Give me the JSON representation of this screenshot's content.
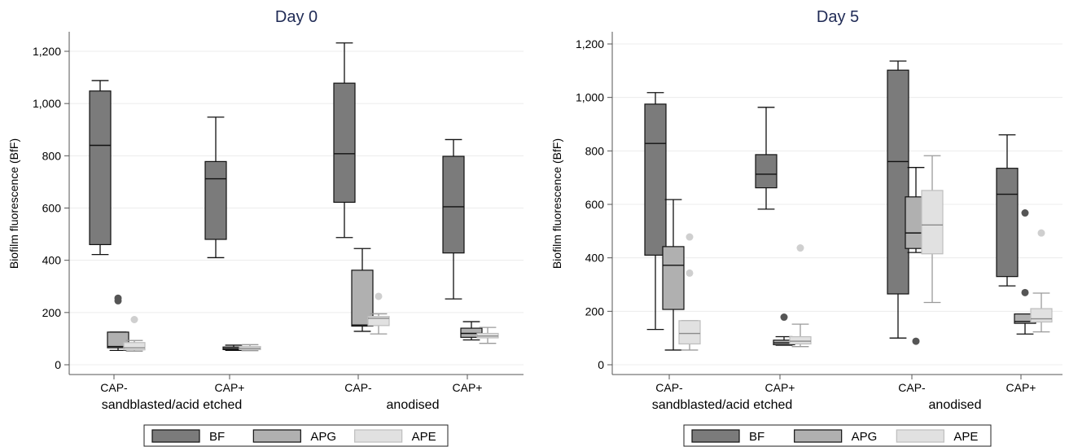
{
  "colors": {
    "BF": "#7b7b7b",
    "APG": "#b0b0b0",
    "APE": "#e1e1e1",
    "title": "#1f2a55",
    "grid": "#ececec",
    "axis": "#555555"
  },
  "chart_data": [
    {
      "type": "box",
      "title": "Day 0",
      "ylabel": "Biofilm fluorescence (BfF)",
      "ylim": [
        -30,
        1280
      ],
      "yticks": [
        0,
        200,
        400,
        600,
        800,
        1000,
        1200
      ],
      "ytick_labels": [
        "0",
        "200",
        "400",
        "600",
        "800",
        "1,000",
        "1,200"
      ],
      "grid": true,
      "legend_placement": "bottom",
      "categories": [
        "CAP-",
        "CAP+",
        "CAP-",
        "CAP+"
      ],
      "groups": [
        {
          "label": "sandblasted/acid etched",
          "categories": [
            0,
            1
          ]
        },
        {
          "label": "anodised",
          "categories": [
            2,
            3
          ]
        }
      ],
      "series": [
        {
          "name": "BF",
          "boxes": [
            {
              "min": 422,
              "q1": 460,
              "median": 840,
              "q3": 1048,
              "max": 1088,
              "outliers": []
            },
            {
              "min": 410,
              "q1": 480,
              "median": 712,
              "q3": 778,
              "max": 948,
              "outliers": []
            },
            {
              "min": 487,
              "q1": 622,
              "median": 808,
              "q3": 1078,
              "max": 1232,
              "outliers": []
            },
            {
              "min": 252,
              "q1": 428,
              "median": 605,
              "q3": 798,
              "max": 862,
              "outliers": []
            }
          ]
        },
        {
          "name": "APG",
          "boxes": [
            {
              "min": 55,
              "q1": 65,
              "median": 70,
              "q3": 125,
              "max": 125,
              "outliers": [
                245,
                255
              ]
            },
            {
              "min": 55,
              "q1": 58,
              "median": 62,
              "q3": 68,
              "max": 75,
              "outliers": []
            },
            {
              "min": 128,
              "q1": 148,
              "median": 152,
              "q3": 362,
              "max": 445,
              "outliers": []
            },
            {
              "min": 95,
              "q1": 105,
              "median": 120,
              "q3": 140,
              "max": 165,
              "outliers": []
            }
          ]
        },
        {
          "name": "APE",
          "boxes": [
            {
              "min": 52,
              "q1": 57,
              "median": 65,
              "q3": 85,
              "max": 93,
              "outliers": [
                173
              ]
            },
            {
              "min": 54,
              "q1": 58,
              "median": 63,
              "q3": 70,
              "max": 77,
              "outliers": []
            },
            {
              "min": 118,
              "q1": 150,
              "median": 178,
              "q3": 185,
              "max": 195,
              "outliers": [
                262
              ]
            },
            {
              "min": 82,
              "q1": 103,
              "median": 110,
              "q3": 120,
              "max": 143,
              "outliers": []
            }
          ]
        }
      ]
    },
    {
      "type": "box",
      "title": "Day 5",
      "ylabel": "Biofilm fluorescence (BfF)",
      "ylim": [
        -30,
        1250
      ],
      "yticks": [
        0,
        200,
        400,
        600,
        800,
        1000,
        1200
      ],
      "ytick_labels": [
        "0",
        "200",
        "400",
        "600",
        "800",
        "1,000",
        "1,200"
      ],
      "grid": true,
      "legend_placement": "bottom",
      "categories": [
        "CAP-",
        "CAP+",
        "CAP-",
        "CAP+"
      ],
      "groups": [
        {
          "label": "sandblasted/acid etched",
          "categories": [
            0,
            1
          ]
        },
        {
          "label": "anodised",
          "categories": [
            2,
            3
          ]
        }
      ],
      "series": [
        {
          "name": "BF",
          "boxes": [
            {
              "min": 132,
              "q1": 410,
              "median": 828,
              "q3": 975,
              "max": 1018,
              "outliers": []
            },
            {
              "min": 582,
              "q1": 662,
              "median": 713,
              "q3": 786,
              "max": 963,
              "outliers": []
            },
            {
              "min": 100,
              "q1": 265,
              "median": 760,
              "q3": 1102,
              "max": 1136,
              "outliers": []
            },
            {
              "min": 295,
              "q1": 330,
              "median": 638,
              "q3": 735,
              "max": 860,
              "outliers": []
            }
          ]
        },
        {
          "name": "APG",
          "boxes": [
            {
              "min": 55,
              "q1": 207,
              "median": 372,
              "q3": 442,
              "max": 618,
              "outliers": []
            },
            {
              "min": 73,
              "q1": 75,
              "median": 82,
              "q3": 92,
              "max": 105,
              "outliers": [
                178
              ]
            },
            {
              "min": 420,
              "q1": 435,
              "median": 493,
              "q3": 628,
              "max": 738,
              "outliers": [
                88
              ]
            },
            {
              "min": 115,
              "q1": 155,
              "median": 162,
              "q3": 190,
              "max": 190,
              "outliers": [
                270,
                568
              ]
            }
          ]
        },
        {
          "name": "APE",
          "boxes": [
            {
              "min": 55,
              "q1": 78,
              "median": 117,
              "q3": 165,
              "max": 165,
              "outliers": [
                343,
                478
              ]
            },
            {
              "min": 68,
              "q1": 78,
              "median": 88,
              "q3": 105,
              "max": 152,
              "outliers": [
                437
              ]
            },
            {
              "min": 233,
              "q1": 415,
              "median": 523,
              "q3": 652,
              "max": 782,
              "outliers": []
            },
            {
              "min": 123,
              "q1": 160,
              "median": 172,
              "q3": 210,
              "max": 268,
              "outliers": [
                493
              ]
            }
          ]
        }
      ]
    }
  ]
}
